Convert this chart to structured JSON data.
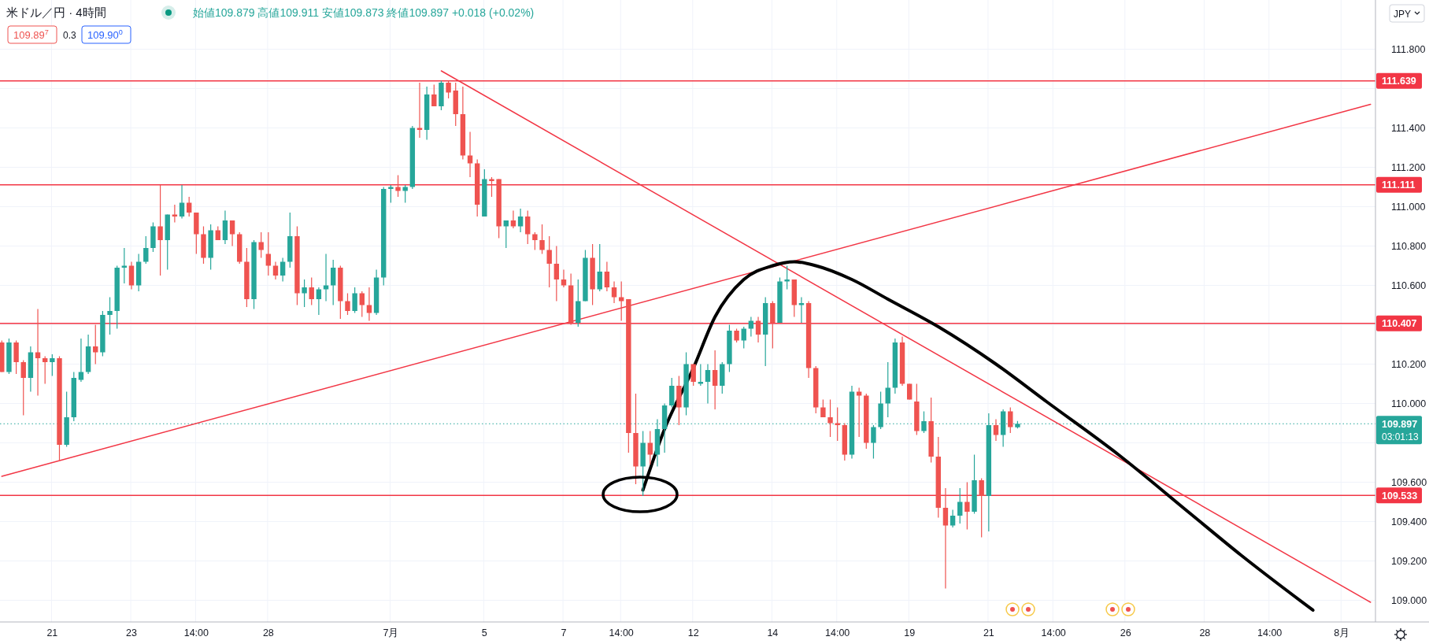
{
  "chart_data": {
    "type": "candlestick",
    "title": "米ドル／円 · 4時間",
    "subtitle": "始値109.879 高値109.911 安値109.873 終値109.897 +0.018 (+0.02%)",
    "annotations": [
      "109.89$^{7}$",
      "0.3",
      "109.90$^{0}$",
      "JPY",
      "03:01:13"
    ],
    "categories": [
      null,
      null,
      null,
      null,
      null,
      null,
      null,
      "21",
      null,
      null,
      null,
      null,
      null,
      null,
      null,
      null,
      null,
      null,
      "23",
      null,
      null,
      null,
      null,
      null,
      null,
      null,
      null,
      "14:00",
      null,
      null,
      null,
      null,
      null,
      null,
      null,
      null,
      null,
      "28",
      null,
      null,
      null,
      null,
      null,
      null,
      null,
      null,
      null,
      null,
      null,
      null,
      null,
      null,
      null,
      null,
      "7月",
      null,
      null,
      null,
      null,
      null,
      null,
      null,
      null,
      null,
      null,
      null,
      null,
      "5",
      null,
      null,
      null,
      null,
      null,
      null,
      null,
      null,
      null,
      null,
      "7",
      null,
      null,
      null,
      null,
      null,
      null,
      null,
      "14:00",
      null,
      null,
      null,
      null,
      null,
      null,
      null,
      null,
      null,
      "12",
      null,
      null,
      null,
      null,
      null,
      null,
      null,
      null,
      null,
      null,
      "14",
      null,
      null,
      null,
      null,
      null,
      null,
      null,
      null,
      "14:00",
      null,
      null,
      null,
      null,
      null,
      null,
      null,
      null,
      null,
      "19",
      null,
      null,
      null,
      null,
      null,
      null,
      null,
      null,
      null,
      null,
      "21",
      null,
      null,
      null,
      null,
      null,
      null,
      null,
      null,
      "14:00",
      null,
      null,
      null,
      null,
      null,
      null,
      null,
      null,
      null,
      "26",
      null,
      null,
      null,
      null,
      null,
      null,
      null,
      null,
      null,
      null,
      "28",
      null,
      null,
      null,
      null,
      null,
      null,
      null,
      null,
      "14:00",
      null,
      null,
      null,
      null,
      null,
      null,
      null,
      null,
      null,
      "8月",
      null,
      null,
      null,
      null
    ],
    "ohlc": [
      [
        110.31,
        110.32,
        110.16,
        110.16
      ],
      [
        110.16,
        110.33,
        110.15,
        110.31
      ],
      [
        110.31,
        110.32,
        110.15,
        110.21
      ],
      [
        110.21,
        110.22,
        109.94,
        110.13
      ],
      [
        110.13,
        110.29,
        110.06,
        110.26
      ],
      [
        110.26,
        110.48,
        110.04,
        110.23
      ],
      [
        110.23,
        110.24,
        110.1,
        110.21
      ],
      [
        110.21,
        110.25,
        110.14,
        110.23
      ],
      [
        110.23,
        110.24,
        109.71,
        109.79
      ],
      [
        109.79,
        110.06,
        109.78,
        109.93
      ],
      [
        109.93,
        110.16,
        109.91,
        110.13
      ],
      [
        110.12,
        110.33,
        110.11,
        110.16
      ],
      [
        110.16,
        110.35,
        110.15,
        110.29
      ],
      [
        110.29,
        110.4,
        110.2,
        110.26
      ],
      [
        110.26,
        110.47,
        110.24,
        110.45
      ],
      [
        110.45,
        110.54,
        110.35,
        110.47
      ],
      [
        110.47,
        110.7,
        110.38,
        110.69
      ],
      [
        110.69,
        110.79,
        110.61,
        110.7
      ],
      [
        110.7,
        110.72,
        110.58,
        110.6
      ],
      [
        110.6,
        110.76,
        110.57,
        110.72
      ],
      [
        110.72,
        110.85,
        110.71,
        110.79
      ],
      [
        110.79,
        110.92,
        110.77,
        110.9
      ],
      [
        110.9,
        111.11,
        110.65,
        110.83
      ],
      [
        110.83,
        110.96,
        110.68,
        110.96
      ],
      [
        110.96,
        111.01,
        110.92,
        110.95
      ],
      [
        110.95,
        111.11,
        110.94,
        111.02
      ],
      [
        111.02,
        111.05,
        110.95,
        110.97
      ],
      [
        110.97,
        110.97,
        110.76,
        110.86
      ],
      [
        110.86,
        110.9,
        110.71,
        110.74
      ],
      [
        110.74,
        110.91,
        110.68,
        110.88
      ],
      [
        110.88,
        110.9,
        110.83,
        110.83
      ],
      [
        110.83,
        110.98,
        110.81,
        110.93
      ],
      [
        110.93,
        110.93,
        110.8,
        110.86
      ],
      [
        110.86,
        110.87,
        110.71,
        110.72
      ],
      [
        110.72,
        110.79,
        110.49,
        110.53
      ],
      [
        110.53,
        110.83,
        110.48,
        110.82
      ],
      [
        110.82,
        110.87,
        110.74,
        110.78
      ],
      [
        110.76,
        110.87,
        110.65,
        110.7
      ],
      [
        110.7,
        110.72,
        110.63,
        110.65
      ],
      [
        110.65,
        110.74,
        110.62,
        110.72
      ],
      [
        110.72,
        110.97,
        110.69,
        110.85
      ],
      [
        110.85,
        110.9,
        110.5,
        110.56
      ],
      [
        110.56,
        110.63,
        110.49,
        110.59
      ],
      [
        110.59,
        110.64,
        110.5,
        110.53
      ],
      [
        110.53,
        110.59,
        110.45,
        110.58
      ],
      [
        110.58,
        110.76,
        110.52,
        110.6
      ],
      [
        110.6,
        110.73,
        110.5,
        110.69
      ],
      [
        110.69,
        110.7,
        110.43,
        110.52
      ],
      [
        110.52,
        110.56,
        110.45,
        110.47
      ],
      [
        110.47,
        110.59,
        110.46,
        110.56
      ],
      [
        110.56,
        110.57,
        110.44,
        110.5
      ],
      [
        110.5,
        110.59,
        110.42,
        110.46
      ],
      [
        110.46,
        110.68,
        110.45,
        110.64
      ],
      [
        110.64,
        111.1,
        110.6,
        111.09
      ],
      [
        111.09,
        111.11,
        111.02,
        111.1
      ],
      [
        111.1,
        111.16,
        111.05,
        111.08
      ],
      [
        111.08,
        111.11,
        111.02,
        111.1
      ],
      [
        111.1,
        111.41,
        111.09,
        111.4
      ],
      [
        111.4,
        111.63,
        111.35,
        111.39
      ],
      [
        111.39,
        111.61,
        111.34,
        111.57
      ],
      [
        111.57,
        111.62,
        111.51,
        111.51
      ],
      [
        111.51,
        111.64,
        111.49,
        111.63
      ],
      [
        111.63,
        111.64,
        111.55,
        111.58
      ],
      [
        111.59,
        111.63,
        111.41,
        111.47
      ],
      [
        111.47,
        111.61,
        111.24,
        111.26
      ],
      [
        111.26,
        111.38,
        111.15,
        111.22
      ],
      [
        111.22,
        111.24,
        110.95,
        111.01
      ],
      [
        110.95,
        111.19,
        110.95,
        111.14
      ],
      [
        111.14,
        111.15,
        111.05,
        111.13
      ],
      [
        111.14,
        111.14,
        110.84,
        110.9
      ],
      [
        110.9,
        110.93,
        110.79,
        110.93
      ],
      [
        110.93,
        110.98,
        110.89,
        110.9
      ],
      [
        110.9,
        110.99,
        110.87,
        110.95
      ],
      [
        110.95,
        110.98,
        110.81,
        110.86
      ],
      [
        110.86,
        110.87,
        110.78,
        110.83
      ],
      [
        110.83,
        110.91,
        110.76,
        110.78
      ],
      [
        110.78,
        110.85,
        110.59,
        110.71
      ],
      [
        110.71,
        110.8,
        110.52,
        110.63
      ],
      [
        110.63,
        110.68,
        110.59,
        110.6
      ],
      [
        110.6,
        110.66,
        110.4,
        110.41
      ],
      [
        110.41,
        110.63,
        110.39,
        110.52
      ],
      [
        110.52,
        110.78,
        110.52,
        110.74
      ],
      [
        110.74,
        110.81,
        110.5,
        110.58
      ],
      [
        110.58,
        110.81,
        110.57,
        110.67
      ],
      [
        110.67,
        110.72,
        110.57,
        110.59
      ],
      [
        110.59,
        110.62,
        110.51,
        110.54
      ],
      [
        110.54,
        110.62,
        110.42,
        110.52
      ],
      [
        110.53,
        110.53,
        109.75,
        109.85
      ],
      [
        109.85,
        110.05,
        109.59,
        109.68
      ],
      [
        109.68,
        109.86,
        109.53,
        109.8
      ],
      [
        109.8,
        109.86,
        109.69,
        109.74
      ],
      [
        109.74,
        109.92,
        109.68,
        109.87
      ],
      [
        109.87,
        110.0,
        109.75,
        109.99
      ],
      [
        109.99,
        110.13,
        109.98,
        110.09
      ],
      [
        110.09,
        110.14,
        109.89,
        109.98
      ],
      [
        109.98,
        110.26,
        109.94,
        110.2
      ],
      [
        110.2,
        110.2,
        110.09,
        110.11
      ],
      [
        110.1,
        110.2,
        110.09,
        110.11
      ],
      [
        110.11,
        110.2,
        110.0,
        110.17
      ],
      [
        110.17,
        110.27,
        109.97,
        110.09
      ],
      [
        110.09,
        110.21,
        110.05,
        110.2
      ],
      [
        110.2,
        110.4,
        110.16,
        110.37
      ],
      [
        110.37,
        110.38,
        110.31,
        110.32
      ],
      [
        110.32,
        110.39,
        110.28,
        110.38
      ],
      [
        110.38,
        110.44,
        110.34,
        110.42
      ],
      [
        110.42,
        110.44,
        110.31,
        110.35
      ],
      [
        110.35,
        110.54,
        110.19,
        110.51
      ],
      [
        110.51,
        110.52,
        110.28,
        110.41
      ],
      [
        110.41,
        110.64,
        110.41,
        110.62
      ],
      [
        110.62,
        110.7,
        110.58,
        110.63
      ],
      [
        110.63,
        110.63,
        110.44,
        110.5
      ],
      [
        110.5,
        110.54,
        110.41,
        110.51
      ],
      [
        110.51,
        110.52,
        110.13,
        110.18
      ],
      [
        110.18,
        110.19,
        109.95,
        109.98
      ],
      [
        109.98,
        110.02,
        109.93,
        109.93
      ],
      [
        109.93,
        110.02,
        109.83,
        109.9
      ],
      [
        109.9,
        109.98,
        109.81,
        109.89
      ],
      [
        109.89,
        109.9,
        109.71,
        109.74
      ],
      [
        109.74,
        110.09,
        109.72,
        110.06
      ],
      [
        110.06,
        110.08,
        109.83,
        110.04
      ],
      [
        110.04,
        110.05,
        109.77,
        109.8
      ],
      [
        109.8,
        109.89,
        109.72,
        109.88
      ],
      [
        109.88,
        110.06,
        109.87,
        110.0
      ],
      [
        110.0,
        110.21,
        109.93,
        110.08
      ],
      [
        110.08,
        110.33,
        110.05,
        110.31
      ],
      [
        110.31,
        110.34,
        110.09,
        110.1
      ],
      [
        110.1,
        110.1,
        110.02,
        110.02
      ],
      [
        110.01,
        110.1,
        109.84,
        109.86
      ],
      [
        109.86,
        109.96,
        109.85,
        109.91
      ],
      [
        109.91,
        110.03,
        109.7,
        109.73
      ],
      [
        109.73,
        109.83,
        109.42,
        109.47
      ],
      [
        109.47,
        109.57,
        109.06,
        109.38
      ],
      [
        109.38,
        109.46,
        109.37,
        109.43
      ],
      [
        109.43,
        109.57,
        109.39,
        109.5
      ],
      [
        109.5,
        109.6,
        109.36,
        109.45
      ],
      [
        109.45,
        109.74,
        109.44,
        109.61
      ],
      [
        109.61,
        109.62,
        109.32,
        109.53
      ],
      [
        109.53,
        109.95,
        109.35,
        109.89
      ],
      [
        109.89,
        109.92,
        109.81,
        109.84
      ],
      [
        109.84,
        109.97,
        109.78,
        109.96
      ],
      [
        109.96,
        109.98,
        109.85,
        109.88
      ],
      [
        109.879,
        109.911,
        109.873,
        109.897
      ],
      null,
      null,
      null,
      null,
      null,
      null,
      null,
      null,
      null,
      null,
      null,
      null,
      null,
      null,
      null,
      null,
      null,
      null,
      null,
      null,
      null,
      null,
      null,
      null,
      null,
      null,
      null,
      null,
      null,
      null,
      null,
      null,
      null,
      null,
      null,
      null,
      null,
      null,
      null,
      null,
      null,
      null,
      null,
      null,
      null,
      null,
      null,
      null,
      null
    ],
    "colors": [
      "#ef5350",
      "#26a69a",
      "#ef5350",
      "#ef5350",
      "#26a69a",
      "#ef5350",
      "#ef5350",
      "#26a69a",
      "#ef5350",
      "#26a69a",
      "#26a69a",
      "#26a69a",
      "#26a69a",
      "#ef5350",
      "#26a69a",
      "#26a69a",
      "#26a69a",
      "#26a69a",
      "#ef5350",
      "#26a69a",
      "#26a69a",
      "#26a69a",
      "#ef5350",
      "#26a69a",
      "#ef5350",
      "#26a69a",
      "#ef5350",
      "#ef5350",
      "#ef5350",
      "#26a69a",
      "#ef5350",
      "#26a69a",
      "#ef5350",
      "#ef5350",
      "#ef5350",
      "#26a69a",
      "#ef5350",
      "#ef5350",
      "#ef5350",
      "#26a69a",
      "#26a69a",
      "#ef5350",
      "#26a69a",
      "#ef5350",
      "#26a69a",
      "#26a69a",
      "#26a69a",
      "#ef5350",
      "#ef5350",
      "#26a69a",
      "#ef5350",
      "#ef5350",
      "#26a69a",
      "#26a69a",
      "#26a69a",
      "#ef5350",
      "#26a69a",
      "#26a69a",
      "#ef5350",
      "#26a69a",
      "#ef5350",
      "#26a69a",
      "#ef5350",
      "#ef5350",
      "#ef5350",
      "#ef5350",
      "#ef5350",
      "#26a69a",
      "#ef5350",
      "#ef5350",
      "#26a69a",
      "#ef5350",
      "#26a69a",
      "#ef5350",
      "#ef5350",
      "#ef5350",
      "#ef5350",
      "#ef5350",
      "#ef5350",
      "#ef5350",
      "#26a69a",
      "#26a69a",
      "#ef5350",
      "#26a69a",
      "#ef5350",
      "#ef5350",
      "#ef5350",
      "#ef5350",
      "#ef5350",
      "#26a69a",
      "#ef5350",
      "#26a69a",
      "#26a69a",
      "#26a69a",
      "#ef5350",
      "#26a69a",
      "#ef5350",
      "#26a69a",
      "#26a69a",
      "#ef5350",
      "#26a69a",
      "#26a69a",
      "#ef5350",
      "#26a69a",
      "#26a69a",
      "#ef5350",
      "#26a69a",
      "#ef5350",
      "#26a69a",
      "#26a69a",
      "#ef5350",
      "#26a69a",
      "#ef5350",
      "#ef5350",
      "#ef5350",
      "#ef5350",
      "#ef5350",
      "#ef5350",
      "#26a69a",
      "#ef5350",
      "#ef5350",
      "#26a69a",
      "#26a69a",
      "#26a69a",
      "#26a69a",
      "#ef5350",
      "#ef5350",
      "#ef5350",
      "#26a69a",
      "#ef5350",
      "#ef5350",
      "#ef5350",
      "#26a69a",
      "#26a69a",
      "#ef5350",
      "#26a69a",
      "#ef5350",
      "#26a69a",
      "#ef5350",
      "#26a69a",
      "#ef5350",
      "#26a69a",
      null,
      null,
      null,
      null,
      null,
      null,
      null,
      null,
      null,
      null,
      null,
      null,
      null,
      null,
      null,
      null,
      null,
      null,
      null,
      null,
      null,
      null,
      null,
      null,
      null,
      null,
      null,
      null,
      null,
      null,
      null,
      null,
      null,
      null,
      null,
      null,
      null,
      null,
      null,
      null,
      null,
      null,
      null,
      null,
      null,
      null,
      null,
      null,
      null
    ],
    "series": [
      {
        "type": "line",
        "color": "#f23645",
        "values": [
          109.63,
          null,
          null,
          null,
          null,
          null,
          null,
          null,
          null,
          null,
          null,
          null,
          null,
          null,
          null,
          null,
          null,
          null,
          null,
          null,
          null,
          null,
          null,
          null,
          null,
          null,
          null,
          null,
          null,
          null,
          null,
          null,
          null,
          null,
          null,
          null,
          null,
          null,
          null,
          null,
          null,
          null,
          null,
          null,
          null,
          null,
          null,
          null,
          null,
          null,
          null,
          null,
          null,
          null,
          null,
          null,
          null,
          null,
          null,
          null,
          null,
          null,
          null,
          null,
          null,
          null,
          null,
          null,
          null,
          null,
          null,
          null,
          null,
          null,
          null,
          null,
          null,
          null,
          null,
          null,
          null,
          null,
          null,
          null,
          null,
          null,
          null,
          null,
          null,
          null,
          null,
          null,
          null,
          null,
          null,
          null,
          null,
          null,
          null,
          null,
          null,
          null,
          null,
          null,
          null,
          null,
          null,
          null,
          null,
          null,
          null,
          null,
          null,
          null,
          null,
          null,
          null,
          null,
          null,
          null,
          null,
          null,
          null,
          null,
          null,
          null,
          null,
          null,
          null,
          null,
          null,
          null,
          null,
          null,
          null,
          null,
          null,
          null,
          null,
          null,
          null,
          null,
          null,
          null,
          null,
          null,
          null,
          null,
          null,
          null,
          null,
          null,
          null,
          null,
          null,
          null,
          null,
          null,
          null,
          null,
          null,
          null,
          null,
          null,
          null,
          null,
          null,
          null,
          null,
          null,
          null,
          null,
          null,
          null,
          null,
          null,
          null,
          null,
          null,
          null,
          null,
          null,
          null,
          null,
          null,
          null,
          null,
          null,
          null,
          null,
          111.52
        ]
      },
      {
        "type": "line",
        "color": "#f23645",
        "values": [
          null,
          null,
          null,
          null,
          null,
          null,
          null,
          null,
          null,
          null,
          null,
          null,
          null,
          null,
          null,
          null,
          null,
          null,
          null,
          null,
          null,
          null,
          null,
          null,
          null,
          null,
          null,
          null,
          null,
          null,
          null,
          null,
          null,
          null,
          null,
          null,
          null,
          null,
          null,
          null,
          null,
          null,
          null,
          null,
          null,
          null,
          null,
          null,
          null,
          null,
          null,
          null,
          null,
          null,
          null,
          null,
          null,
          null,
          null,
          null,
          null,
          111.69,
          null,
          null,
          null,
          null,
          null,
          null,
          null,
          null,
          null,
          null,
          null,
          null,
          null,
          null,
          null,
          null,
          null,
          null,
          null,
          null,
          null,
          null,
          null,
          null,
          null,
          null,
          null,
          null,
          null,
          null,
          null,
          null,
          null,
          null,
          null,
          null,
          null,
          null,
          null,
          null,
          null,
          null,
          null,
          null,
          null,
          null,
          null,
          null,
          null,
          null,
          null,
          null,
          null,
          null,
          null,
          null,
          null,
          null,
          null,
          null,
          null,
          null,
          null,
          null,
          null,
          null,
          null,
          null,
          null,
          null,
          null,
          null,
          null,
          null,
          null,
          null,
          null,
          null,
          null,
          null,
          null,
          null,
          null,
          null,
          null,
          null,
          null,
          null,
          null,
          null,
          null,
          null,
          null,
          null,
          null,
          null,
          null,
          null,
          null,
          null,
          null,
          null,
          null,
          null,
          null,
          null,
          null,
          null,
          null,
          null,
          null,
          null,
          null,
          null,
          null,
          null,
          null,
          null,
          null,
          null,
          null,
          null,
          null,
          null,
          null,
          null,
          null,
          null,
          108.99
        ]
      },
      {
        "type": "line",
        "color": "#000000",
        "values": [
          null,
          null,
          null,
          null,
          null,
          null,
          null,
          null,
          null,
          null,
          null,
          null,
          null,
          null,
          null,
          null,
          null,
          null,
          null,
          null,
          null,
          null,
          null,
          null,
          null,
          null,
          null,
          null,
          null,
          null,
          null,
          null,
          null,
          null,
          null,
          null,
          null,
          null,
          null,
          null,
          null,
          null,
          null,
          null,
          null,
          null,
          null,
          null,
          null,
          null,
          null,
          null,
          null,
          null,
          null,
          null,
          null,
          null,
          null,
          null,
          null,
          null,
          null,
          null,
          null,
          null,
          null,
          null,
          null,
          null,
          null,
          null,
          null,
          null,
          null,
          null,
          null,
          null,
          null,
          null,
          null,
          null,
          null,
          null,
          null,
          null,
          null,
          null,
          null,
          109.56,
          null,
          null,
          109.87,
          null,
          null,
          null,
          110.18,
          null,
          null,
          110.44,
          null,
          null,
          null,
          110.63,
          null,
          null,
          null,
          110.7,
          null,
          null,
          110.72,
          null,
          null,
          110.7,
          null,
          null,
          null,
          null,
          110.63,
          null,
          null,
          null,
          null,
          110.53,
          null,
          null,
          null,
          null,
          null,
          null,
          110.39,
          null,
          null,
          null,
          null,
          null,
          null,
          null,
          110.2,
          null,
          null,
          null,
          null,
          null,
          null,
          110.01,
          null,
          null,
          null,
          null,
          null,
          null,
          null,
          null,
          null,
          109.74,
          null,
          null,
          null,
          null,
          null,
          null,
          null,
          null,
          null,
          109.44,
          null,
          null,
          null,
          null,
          null,
          null,
          109.23,
          null,
          null,
          null,
          null,
          null,
          null,
          null,
          null,
          null,
          108.95,
          null,
          null,
          null,
          null,
          null,
          null,
          null,
          null
        ]
      }
    ],
    "ylim": [
      108.89,
      112.05
    ],
    "yticks": [
      {
        "value": 109.0,
        "label": "109.000"
      },
      {
        "value": 109.2,
        "label": "109.200"
      },
      {
        "value": 109.4,
        "label": "109.400"
      },
      {
        "value": 109.6,
        "label": "109.600"
      },
      {
        "value": 109.8,
        "label": null
      },
      {
        "value": 110.0,
        "label": "110.000"
      },
      {
        "value": 110.2,
        "label": "110.200"
      },
      {
        "value": 110.4,
        "label": null
      },
      {
        "value": 110.6,
        "label": "110.600"
      },
      {
        "value": 110.8,
        "label": "110.800"
      },
      {
        "value": 111.0,
        "label": "111.000"
      },
      {
        "value": 111.2,
        "label": "111.200"
      },
      {
        "value": 111.4,
        "label": "111.400"
      },
      {
        "value": 111.6,
        "label": null
      },
      {
        "value": 111.8,
        "label": "111.800"
      }
    ],
    "ref_lines": [
      {
        "axis": "y",
        "value": 111.639,
        "label": "111.639",
        "color": "#f23645"
      },
      {
        "axis": "y",
        "value": 111.111,
        "label": "111.111",
        "color": "#f23645"
      },
      {
        "axis": "y",
        "value": 110.407,
        "label": "110.407",
        "color": "#f23645"
      },
      {
        "axis": "y",
        "value": 109.533,
        "label": "109.533",
        "color": "#f23645"
      },
      {
        "axis": "y",
        "value": 109.897,
        "label": "109.897",
        "color": "#26a69a",
        "line_style": "dotted"
      }
    ],
    "grid": true
  }
}
